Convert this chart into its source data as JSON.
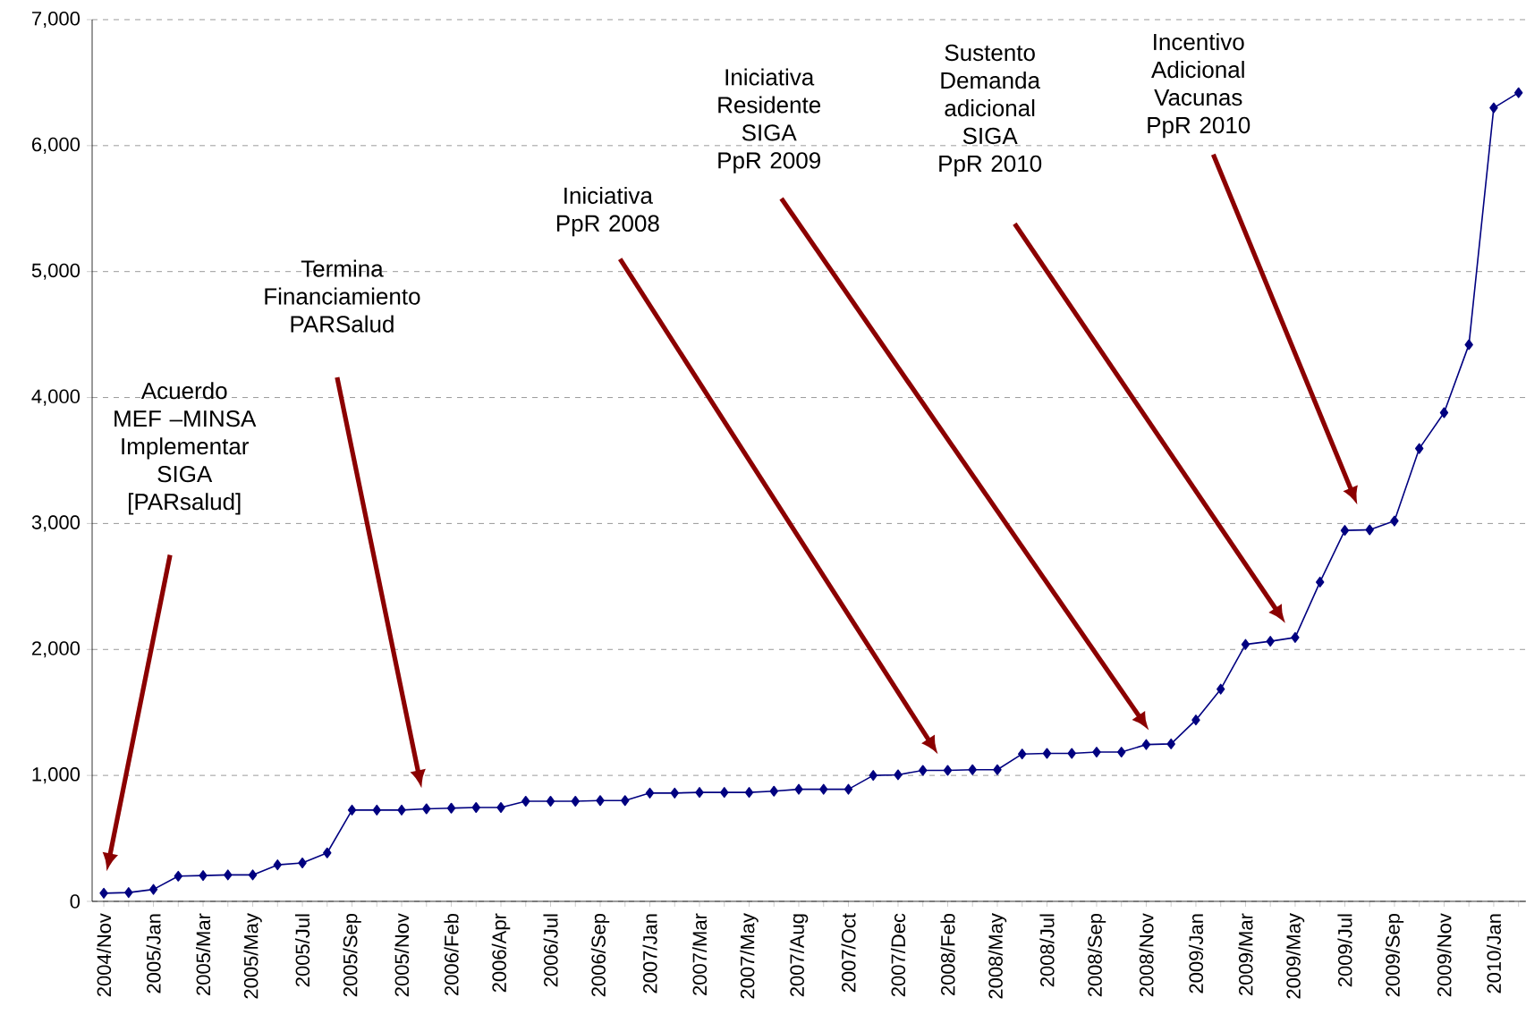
{
  "chart_data": {
    "type": "line",
    "color": "#000080",
    "marker": "diamond",
    "grid": "y",
    "categories": [
      "2004/Nov",
      null,
      "2005/Jan",
      null,
      "2005/Mar",
      null,
      "2005/May",
      null,
      "2005/Jul",
      null,
      "2005/Sep",
      null,
      "2005/Nov",
      null,
      "2006/Feb",
      null,
      "2006/Apr",
      null,
      "2006/Jul",
      null,
      "2006/Sep",
      null,
      "2007/Jan",
      null,
      "2007/Mar",
      null,
      "2007/May",
      null,
      "2007/Aug",
      null,
      "2007/Oct",
      null,
      "2007/Dec",
      null,
      "2008/Feb",
      null,
      "2008/May",
      null,
      "2008/Jul",
      null,
      "2008/Sep",
      null,
      "2008/Nov",
      null,
      "2009/Jan",
      null,
      "2009/Mar",
      null,
      "2009/May",
      null,
      "2009/Jul",
      null,
      "2009/Sep",
      null,
      "2009/Nov",
      null,
      "2010/Jan",
      null
    ],
    "values": [
      65,
      70,
      95,
      200,
      205,
      210,
      210,
      290,
      305,
      385,
      725,
      725,
      725,
      735,
      740,
      745,
      745,
      795,
      795,
      795,
      800,
      800,
      860,
      860,
      865,
      865,
      865,
      875,
      890,
      890,
      890,
      1000,
      1005,
      1040,
      1040,
      1045,
      1045,
      1170,
      1175,
      1175,
      1185,
      1185,
      1245,
      1250,
      1440,
      1685,
      2040,
      2065,
      2095,
      2535,
      2945,
      2950,
      3020,
      3595,
      3880,
      4420,
      6300,
      6420
    ],
    "ylim": [
      0,
      7000
    ],
    "yticks": [
      {
        "value": 0,
        "label": "0"
      },
      {
        "value": 1000,
        "label": "1,000"
      },
      {
        "value": 2000,
        "label": "2,000"
      },
      {
        "value": 3000,
        "label": "3,000"
      },
      {
        "value": 4000,
        "label": "4,000"
      },
      {
        "value": 5000,
        "label": "5,000"
      },
      {
        "value": 6000,
        "label": "6,000"
      },
      {
        "value": 7000,
        "label": "7,000"
      }
    ],
    "annotations": [
      "Acuerdo\nMEF –MINSA\nImplementar\nSIGA\n[PARsalud]",
      "Termina\nFinanciamiento\nPARSalud",
      "Iniciativa\nPpR 2008",
      "Iniciativa\nResidente\nSIGA\nPpR 2009",
      "Sustento\nDemanda\nadicional\nSIGA\nPpR 2010",
      "Incentivo\nAdicional\nVacunas\nPpR 2010"
    ]
  }
}
